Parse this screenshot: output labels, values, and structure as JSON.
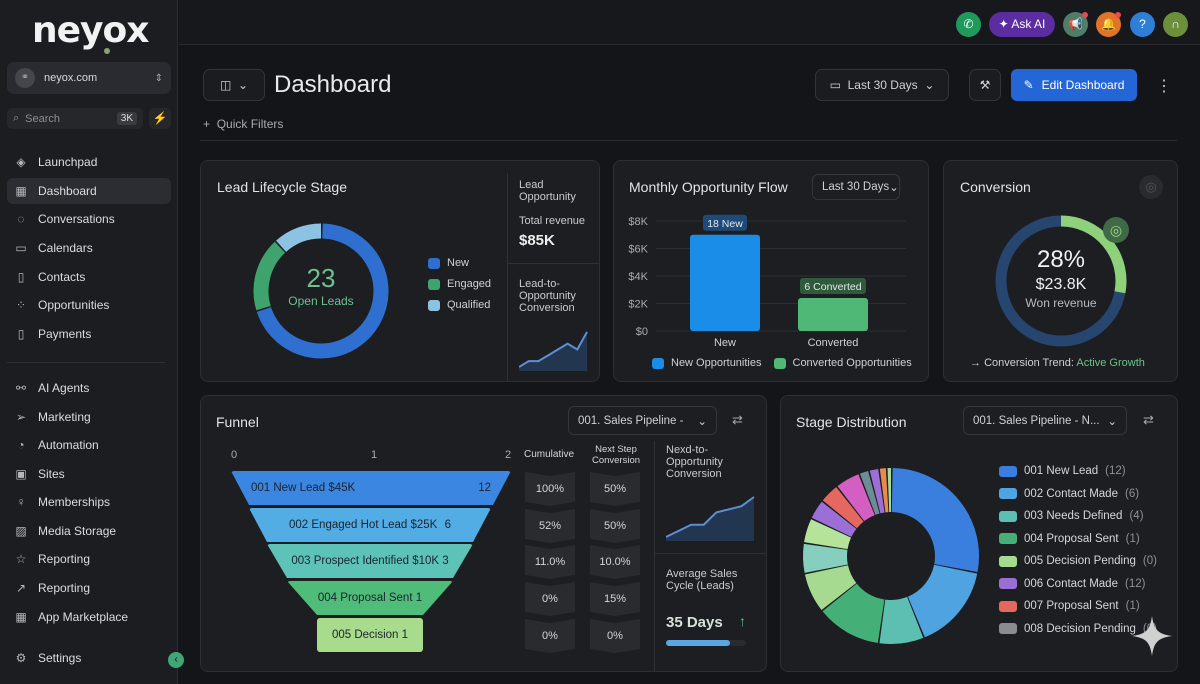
{
  "brand": {
    "logo": "neyox",
    "account": "neyox.com"
  },
  "search": {
    "placeholder": "Search",
    "shortcut": "3K"
  },
  "sidebar": {
    "items": [
      {
        "label": "Launchpad",
        "icon": "rocket-icon"
      },
      {
        "label": "Dashboard",
        "icon": "grid-icon",
        "active": true
      },
      {
        "label": "Conversations",
        "icon": "chat-icon"
      },
      {
        "label": "Calendars",
        "icon": "calendar-icon"
      },
      {
        "label": "Contacts",
        "icon": "contacts-icon"
      },
      {
        "label": "Opportunities",
        "icon": "opportunities-icon"
      },
      {
        "label": "Payments",
        "icon": "payments-icon"
      },
      {
        "label": "AI Agents",
        "icon": "ai-agents-icon"
      },
      {
        "label": "Marketing",
        "icon": "send-icon"
      },
      {
        "label": "Automation",
        "icon": "automation-icon"
      },
      {
        "label": "Sites",
        "icon": "sites-icon"
      },
      {
        "label": "Memberships",
        "icon": "award-icon"
      },
      {
        "label": "Media Storage",
        "icon": "image-icon"
      },
      {
        "label": "Reporting",
        "icon": "star-icon"
      },
      {
        "label": "Reporting",
        "icon": "trend-icon"
      },
      {
        "label": "App Marketplace",
        "icon": "apps-icon"
      }
    ],
    "settings": "Settings"
  },
  "topbar": {
    "ask_ai": "Ask AI",
    "help": "?",
    "colors": {
      "phone": "#1f9a5c",
      "ai": "#5b2da0",
      "announce": "#4f7d68",
      "bell": "#e0732a",
      "help": "#2f7fd6",
      "avatar": "#6b8f3a"
    }
  },
  "header": {
    "title": "Dashboard",
    "quick_filters": "Quick Filters",
    "date_range": "Last 30 Days",
    "edit": "Edit Dashboard"
  },
  "lead_lifecycle": {
    "title": "Lead Lifecycle Stage",
    "center_value": "23",
    "center_label": "Open Leads",
    "chart_data": {
      "type": "pie",
      "categories": [
        "New",
        "Engaged",
        "Qualified"
      ],
      "values": [
        70,
        18,
        12
      ],
      "colors": [
        "#2f6fcf",
        "#3fa36e",
        "#8cc3e3"
      ]
    },
    "side_title": "Lead Opportunity",
    "revenue_label": "Total revenue",
    "revenue": "$85K",
    "conv_title": "Lead-to-Opportunity Conversion",
    "sparkline": [
      2,
      3,
      3,
      4,
      5,
      6,
      5,
      8
    ]
  },
  "monthly": {
    "title": "Monthly Opportunity Flow",
    "range": "Last 30 Days",
    "chart_data": {
      "type": "bar",
      "categories": [
        "New",
        "Converted"
      ],
      "values": [
        7000,
        2400
      ],
      "data_labels": [
        "18 New",
        "6 Converted"
      ],
      "yticks": [
        "$0",
        "$2K",
        "$4K",
        "$6K",
        "$8K"
      ],
      "ylim": [
        0,
        8000
      ],
      "colors": [
        "#1a8de8",
        "#4fb877"
      ],
      "legend": [
        "New Opportunities",
        "Converted Opportunities"
      ],
      "legend_position": "bottom",
      "grid": true
    }
  },
  "conversion": {
    "title": "Conversion",
    "percent": "28%",
    "value": "$23.8K",
    "label": "Won revenue",
    "progress": 0.28,
    "trend_label": "Conversion Trend:",
    "trend": "Active Growth"
  },
  "funnel": {
    "title": "Funnel",
    "pipeline": "001. Sales Pipeline -",
    "axis": [
      "0",
      "1",
      "2"
    ],
    "col_cumulative": "Cumulative",
    "col_next": "Next Step Conversion",
    "stages": [
      {
        "label": "001 New Lead  $45K",
        "count": "12",
        "cumulative": "100%",
        "next": "50%",
        "color": "#3a86e0"
      },
      {
        "label": "002 Engaged Hot Lead  $25K",
        "count": "6",
        "cumulative": "52%",
        "next": "50%",
        "color": "#52ade5"
      },
      {
        "label": "003 Prospect Identified  $10K 3",
        "count": "",
        "cumulative": "11.0%",
        "next": "10.0%",
        "color": "#5dc3b8"
      },
      {
        "label": "004 Proposal Sent  1",
        "count": "",
        "cumulative": "0%",
        "next": "15%",
        "color": "#4fbc79"
      },
      {
        "label": "005 Decision  1",
        "count": "",
        "cumulative": "0%",
        "next": "0%",
        "color": "#a8dc8c"
      }
    ],
    "conv_title": "Nexd-to-Opportunity Conversion",
    "sparkline": [
      1,
      2,
      3,
      3,
      5,
      5.5,
      6,
      7.5
    ],
    "cycle_title": "Average Sales Cycle (Leads)",
    "cycle_value": "35 Days",
    "cycle_progress": 0.8
  },
  "stage_distribution": {
    "title": "Stage Distribution",
    "pipeline": "001. Sales Pipeline - N...",
    "legend": [
      {
        "label": "001 New Lead",
        "count": "(12)",
        "color": "#3a7fde"
      },
      {
        "label": "002 Contact Made",
        "count": "(6)",
        "color": "#4fa3e0"
      },
      {
        "label": "003 Needs Defined",
        "count": "(4)",
        "color": "#5cbfb2"
      },
      {
        "label": "004 Proposal Sent",
        "count": "(1)",
        "color": "#44b078"
      },
      {
        "label": "005 Decision Pending",
        "count": "(0)",
        "color": "#a6da90"
      },
      {
        "label": "006 Contact Made",
        "count": "(12)",
        "color": "#9b6fd6"
      },
      {
        "label": "007 Proposal Sent",
        "count": "(1)",
        "color": "#e4685f"
      },
      {
        "label": "008 Decision Pending",
        "count": "(0)",
        "color": "#8a8c90"
      }
    ],
    "chart_data": {
      "type": "pie",
      "values": [
        30,
        17,
        9,
        13,
        8,
        6,
        5,
        4,
        4,
        5,
        2,
        2,
        1.5,
        1
      ],
      "colors": [
        "#3a7fde",
        "#4fa3e0",
        "#5cbfb2",
        "#44b078",
        "#a6da90",
        "#86cfbe",
        "#b6e39a",
        "#9b6fd6",
        "#e4685f",
        "#d35fc2",
        "#6e8c96",
        "#9b6fd6",
        "#e88a4a",
        "#a6da90"
      ]
    }
  }
}
